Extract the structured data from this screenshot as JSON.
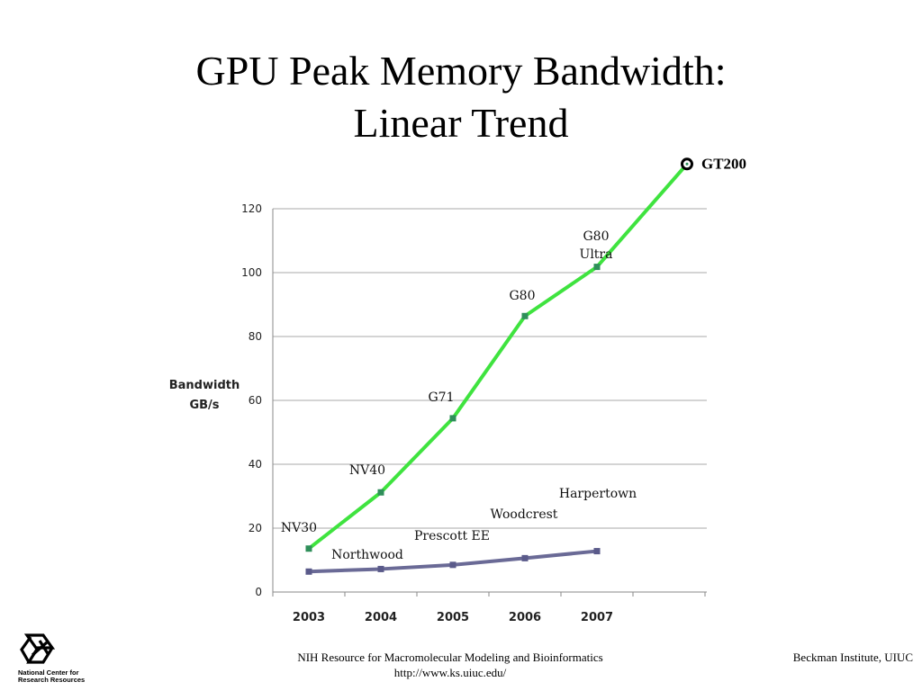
{
  "slide": {
    "title_line1": "GPU Peak Memory Bandwidth:",
    "title_line2": "Linear Trend",
    "footer_center_line1": "NIH Resource for Macromolecular Modeling and Bioinformatics",
    "footer_center_line2": "http://www.ks.uiuc.edu/",
    "footer_right": "Beckman Institute, UIUC",
    "logo_line1": "National Center for",
    "logo_line2": "Research Resources"
  },
  "chart_data": {
    "type": "line",
    "title": "",
    "xlabel": "",
    "ylabel": "Bandwidth GB/s",
    "ylabel_lines": [
      "Bandwidth",
      "GB/s"
    ],
    "categories": [
      "2003",
      "2004",
      "2005",
      "2006",
      "2007"
    ],
    "ylim": [
      0,
      120
    ],
    "yticks": [
      0,
      20,
      40,
      60,
      80,
      100,
      120
    ],
    "grid": true,
    "series": [
      {
        "color": "#3fe33f",
        "points": [
          {
            "x": "2003",
            "y": 13.6,
            "label": "NV30"
          },
          {
            "x": "2004",
            "y": 31.2,
            "label": "NV40"
          },
          {
            "x": "2005",
            "y": 54.4,
            "label": "G71"
          },
          {
            "x": "2006",
            "y": 86.4,
            "label": "G80"
          },
          {
            "x": "2007",
            "y": 101.8,
            "label": "G80 Ultra"
          }
        ]
      },
      {
        "color": "#6a6a96",
        "points": [
          {
            "x": "2003",
            "y": 6.4,
            "label": "Northwood"
          },
          {
            "x": "2004",
            "y": 7.2,
            "label": ""
          },
          {
            "x": "2005",
            "y": 8.5,
            "label": "Prescott EE"
          },
          {
            "x": "2006",
            "y": 10.6,
            "label": "Woodcrest"
          },
          {
            "x": "2007",
            "y": 12.8,
            "label": "Harpertown"
          }
        ]
      }
    ],
    "gt200": {
      "label": "GT200",
      "y": 134
    }
  }
}
